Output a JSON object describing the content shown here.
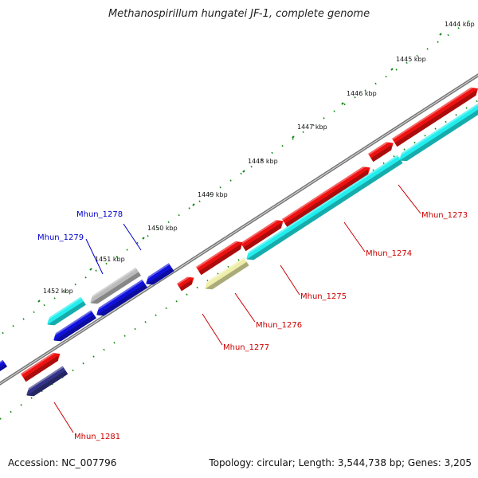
{
  "title": "Methanospirillum hungatei JF-1, complete genome",
  "footer": {
    "accession": "Accession: NC_007796",
    "summary": "Topology: circular; Length: 3,544,738 bp; Genes: 3,205"
  },
  "colors": {
    "red": "#ee1111",
    "cyan": "#22eeee",
    "blue": "#1111dd",
    "navy": "#333388",
    "gray": "#bbbbbb",
    "yellow": "#eeeeaa",
    "tick": "#118811",
    "backbone": "#777777",
    "label_red": "#cc0000",
    "label_blue": "#0000cc"
  },
  "ticks": [
    {
      "label": "1444 kbp"
    },
    {
      "label": "1445 kbp"
    },
    {
      "label": "1446 kbp"
    },
    {
      "label": "1447 kbp"
    },
    {
      "label": "1448 kbp"
    },
    {
      "label": "1449 kbp"
    },
    {
      "label": "1450 kbp"
    },
    {
      "label": "1451 kbp"
    },
    {
      "label": "1452 kbp"
    }
  ],
  "genes": [
    {
      "label": "Mhun_1273",
      "color": "red"
    },
    {
      "label": "Mhun_1274",
      "color": "red"
    },
    {
      "label": "Mhun_1275",
      "color": "red"
    },
    {
      "label": "Mhun_1276",
      "color": "red"
    },
    {
      "label": "Mhun_1277",
      "color": "red"
    },
    {
      "label": "Mhun_1278",
      "color": "blue"
    },
    {
      "label": "Mhun_1279",
      "color": "blue"
    },
    {
      "label": "Mhun_1281",
      "color": "red"
    }
  ]
}
